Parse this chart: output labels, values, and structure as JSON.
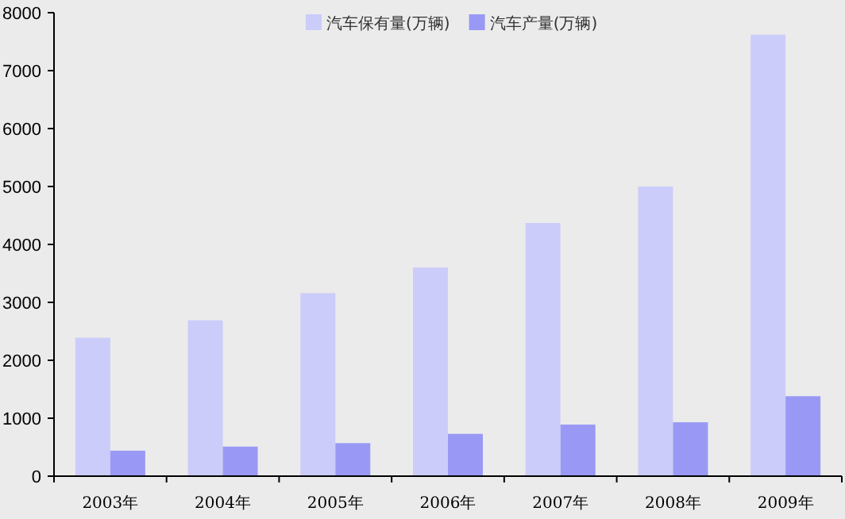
{
  "chart_data": {
    "type": "bar",
    "categories": [
      "2003年",
      "2004年",
      "2005年",
      "2006年",
      "2007年",
      "2008年",
      "2009年"
    ],
    "series": [
      {
        "name": "汽车保有量(万辆)",
        "color": "#ccccfa",
        "values": [
          2390,
          2690,
          3160,
          3600,
          4370,
          5000,
          7620
        ]
      },
      {
        "name": "汽车产量(万辆)",
        "color": "#9999f5",
        "values": [
          440,
          510,
          570,
          730,
          890,
          930,
          1380
        ]
      }
    ],
    "ylim": [
      0,
      8000
    ],
    "yticks": [
      0,
      1000,
      2000,
      3000,
      4000,
      5000,
      6000,
      7000,
      8000
    ],
    "legend": "top",
    "grid": false
  }
}
